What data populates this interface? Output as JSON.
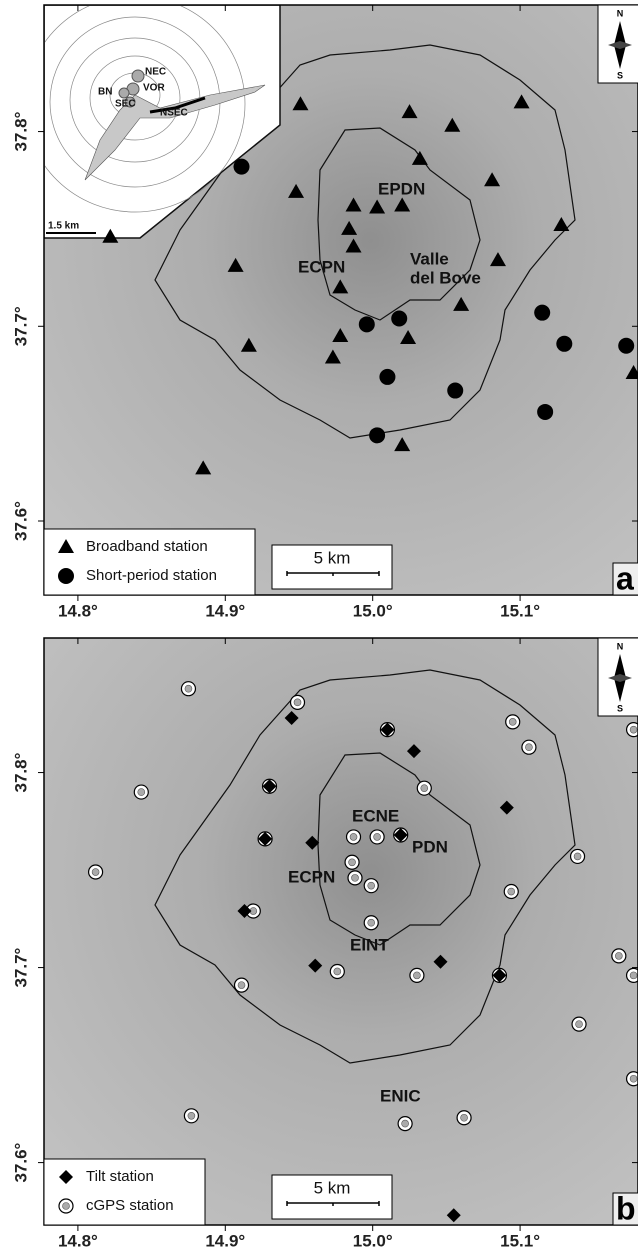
{
  "panels": [
    {
      "panel_label": "a",
      "xlim": [
        14.777,
        15.18
      ],
      "ylim": [
        37.562,
        37.865
      ],
      "xticks": [
        {
          "value": 14.8,
          "label": "14.8°"
        },
        {
          "value": 14.9,
          "label": "14.9°"
        },
        {
          "value": 15.0,
          "label": "15.0°"
        },
        {
          "value": 15.1,
          "label": "15.1°"
        }
      ],
      "yticks": [
        {
          "value": 37.6,
          "label": "37.6°"
        },
        {
          "value": 37.7,
          "label": "37.7°"
        },
        {
          "value": 37.8,
          "label": "37.8°"
        }
      ],
      "scale_bar": "5 km",
      "compass": {
        "north": "N",
        "south": "S"
      },
      "place_labels": [
        "EPDN",
        "ECPN",
        "Valle",
        "del Bove"
      ],
      "inset": {
        "labels": [
          "NEC",
          "VOR",
          "BN",
          "SEC",
          "NSEC"
        ],
        "scale_bar": "1.5 km"
      },
      "series": [
        {
          "name": "Broadband station",
          "marker": "triangle",
          "lon": [
            14.822,
            14.951,
            15.025,
            15.054,
            15.101,
            15.032,
            14.948,
            14.987,
            15.003,
            15.02,
            15.081,
            15.128,
            14.984,
            14.987,
            14.907,
            15.085,
            14.978,
            15.06,
            14.978,
            15.024,
            14.916,
            14.973,
            15.177,
            15.02,
            14.885
          ],
          "lat": [
            37.746,
            37.814,
            37.81,
            37.803,
            37.815,
            37.786,
            37.769,
            37.762,
            37.761,
            37.762,
            37.775,
            37.752,
            37.75,
            37.741,
            37.731,
            37.734,
            37.72,
            37.711,
            37.695,
            37.694,
            37.69,
            37.684,
            37.676,
            37.639,
            37.627
          ]
        },
        {
          "name": "Short-period station",
          "marker": "circle",
          "lon": [
            14.911,
            14.996,
            15.018,
            15.115,
            15.13,
            15.172,
            15.01,
            15.056,
            15.117,
            15.003
          ],
          "lat": [
            37.782,
            37.701,
            37.704,
            37.707,
            37.691,
            37.69,
            37.674,
            37.667,
            37.656,
            37.644
          ]
        }
      ]
    },
    {
      "panel_label": "b",
      "xlim": [
        14.777,
        15.18
      ],
      "ylim": [
        37.568,
        37.869
      ],
      "xticks": [
        {
          "value": 14.8,
          "label": "14.8°"
        },
        {
          "value": 14.9,
          "label": "14.9°"
        },
        {
          "value": 15.0,
          "label": "15.0°"
        },
        {
          "value": 15.1,
          "label": "15.1°"
        }
      ],
      "yticks": [
        {
          "value": 37.6,
          "label": "37.6°"
        },
        {
          "value": 37.7,
          "label": "37.7°"
        },
        {
          "value": 37.8,
          "label": "37.8°"
        }
      ],
      "scale_bar": "5 km",
      "compass": {
        "north": "N",
        "south": "S"
      },
      "place_labels": [
        "ECNE",
        "PDN",
        "ECPN",
        "EINT",
        "ENIC"
      ],
      "series": [
        {
          "name": "cGPS station",
          "marker": "gps",
          "lon": [
            14.875,
            14.949,
            15.095,
            15.106,
            14.843,
            15.035,
            14.812,
            14.987,
            15.003,
            14.986,
            14.988,
            14.999,
            15.094,
            15.139,
            14.919,
            14.999,
            14.911,
            14.976,
            15.03,
            15.167,
            15.177,
            15.14,
            15.177,
            15.177,
            14.877,
            15.062,
            15.022,
            15.01,
            14.93,
            14.927,
            15.019,
            15.086
          ],
          "lat": [
            37.843,
            37.836,
            37.826,
            37.813,
            37.79,
            37.792,
            37.749,
            37.767,
            37.767,
            37.754,
            37.746,
            37.742,
            37.739,
            37.757,
            37.729,
            37.723,
            37.691,
            37.698,
            37.696,
            37.706,
            37.696,
            37.671,
            37.643,
            37.822,
            37.624,
            37.623,
            37.62,
            37.822,
            37.793,
            37.766,
            37.768,
            37.696
          ]
        },
        {
          "name": "Tilt station",
          "marker": "diamond",
          "lon": [
            14.945,
            15.01,
            15.028,
            14.93,
            15.091,
            14.959,
            15.019,
            14.927,
            14.913,
            14.961,
            15.046,
            15.086,
            15.055
          ],
          "lat": [
            37.828,
            37.822,
            37.811,
            37.793,
            37.782,
            37.764,
            37.768,
            37.766,
            37.729,
            37.701,
            37.703,
            37.696,
            37.573
          ]
        }
      ],
      "legend_order": [
        "Tilt station",
        "cGPS station"
      ]
    }
  ]
}
